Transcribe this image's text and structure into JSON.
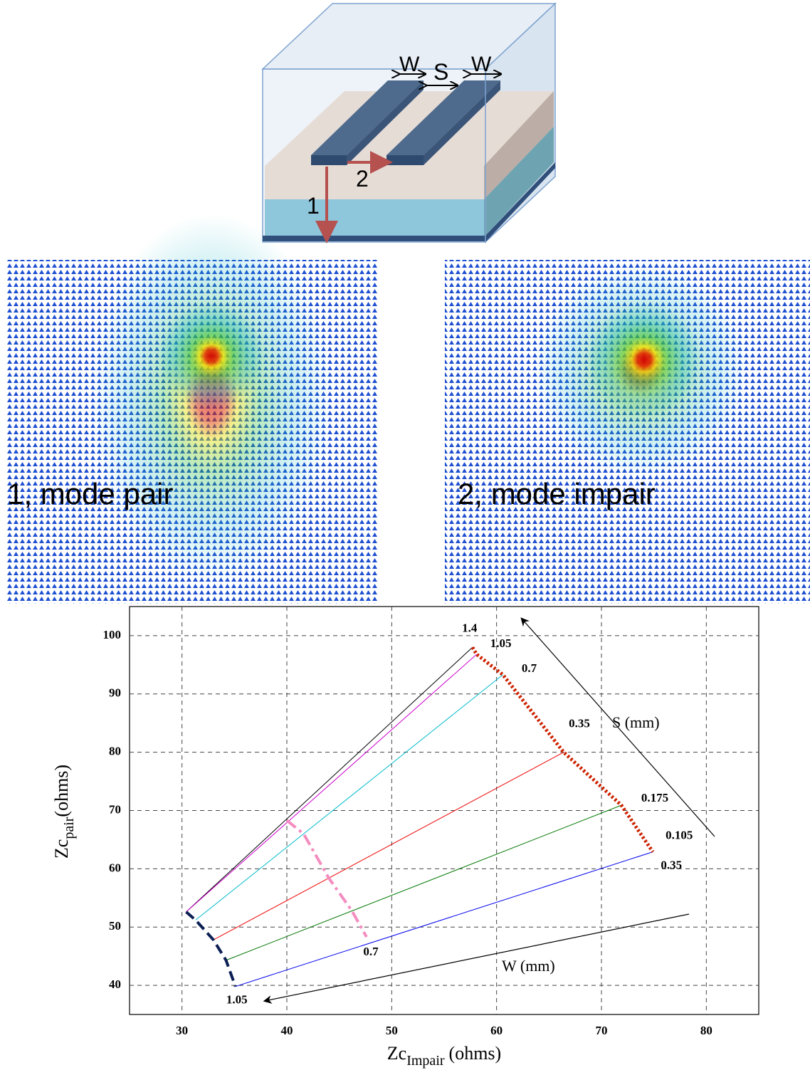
{
  "diagram": {
    "labels": {
      "w_left": "W",
      "s": "S",
      "w_right": "W",
      "arrow_1": "1",
      "arrow_2": "2"
    },
    "fields": [
      "1, mode pair",
      "2, mode impair"
    ]
  },
  "chart_data": {
    "type": "line",
    "xlabel": {
      "main": "Zc",
      "sub": "Impair",
      "unit": "(ohms)"
    },
    "ylabel": {
      "main": "Zc",
      "sub": "pair",
      "unit": "(ohms)"
    },
    "annotations": [
      "S  (mm)",
      "W (mm)"
    ],
    "xlim": [
      25,
      85
    ],
    "ylim": [
      35,
      105
    ],
    "xticks": [
      30,
      40,
      50,
      60,
      70,
      80
    ],
    "yticks": [
      40,
      50,
      60,
      70,
      80,
      90,
      100
    ],
    "grid": true,
    "series": [
      {
        "name": "1.4",
        "color": "#000000",
        "x": [
          30.4,
          57.7
        ],
        "values": [
          52.6,
          98.0
        ]
      },
      {
        "name": "1.05",
        "color": "#cc00cc",
        "x": [
          30.4,
          58.1
        ],
        "values": [
          52.6,
          96.8
        ]
      },
      {
        "name": "0.7",
        "color": "#00bbcc",
        "x": [
          31.3,
          60.6
        ],
        "values": [
          51.2,
          93.3
        ]
      },
      {
        "name": "0.35",
        "color": "#ee0000",
        "x": [
          33.0,
          66.4
        ],
        "values": [
          47.8,
          80.0
        ]
      },
      {
        "name": "0.175",
        "color": "#007700",
        "x": [
          34.2,
          71.9
        ],
        "values": [
          44.3,
          70.9
        ]
      },
      {
        "name": "0.105",
        "color": "#0000ee",
        "x": [
          35.1,
          74.9
        ],
        "values": [
          39.8,
          62.9
        ]
      }
    ],
    "curves": [
      {
        "name": "1.05",
        "color": "#0b1f55",
        "style": "dashed",
        "x": [
          30.4,
          31.3,
          33.0,
          34.2,
          35.1
        ],
        "values": [
          52.6,
          51.2,
          47.8,
          44.3,
          39.8
        ]
      },
      {
        "name": "0.7",
        "color": "#f48cc0",
        "style": "dashdot",
        "x": [
          40.0,
          41.6,
          44.0,
          46.2,
          47.6
        ],
        "values": [
          68.3,
          66.0,
          58.4,
          52.8,
          48.3
        ]
      },
      {
        "name": "0.35",
        "color": "#cc2200",
        "style": "dotted",
        "x": [
          57.7,
          58.1,
          60.6,
          66.4,
          71.9,
          74.9
        ],
        "values": [
          98.0,
          96.8,
          93.3,
          80.0,
          70.9,
          62.9
        ]
      }
    ]
  }
}
